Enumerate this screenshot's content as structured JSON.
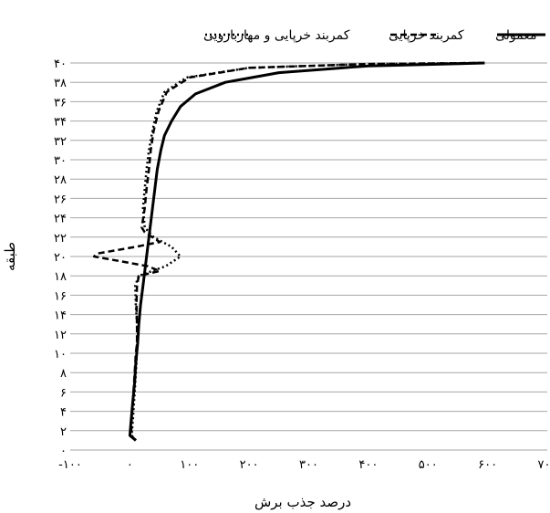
{
  "chart_data": {
    "type": "line",
    "orientation": "values-on-x, floors-on-y",
    "xlabel": "درصد جذب برش",
    "ylabel": "طبقه",
    "xlim": [
      -100,
      700
    ],
    "ylim": [
      0,
      40
    ],
    "x_ticks": [
      -100,
      0,
      100,
      200,
      300,
      400,
      500,
      600,
      700
    ],
    "x_tick_labels": [
      "-۱۰۰",
      "۰",
      "۱۰۰",
      "۲۰۰",
      "۳۰۰",
      "۴۰۰",
      "۵۰۰",
      "۶۰۰",
      "۷۰۰"
    ],
    "y_ticks": [
      0,
      2,
      4,
      6,
      8,
      10,
      12,
      14,
      16,
      18,
      20,
      22,
      24,
      26,
      28,
      30,
      32,
      34,
      36,
      38,
      40
    ],
    "y_tick_labels": [
      "۰",
      "۲",
      "۴",
      "۶",
      "۸",
      "۱۰",
      "۱۲",
      "۱۴",
      "۱۶",
      "۱۸",
      "۲۰",
      "۲۲",
      "۲۴",
      "۲۶",
      "۲۸",
      "۳۰",
      "۳۲",
      "۳۴",
      "۳۶",
      "۳۸",
      "۴۰"
    ],
    "grid": true,
    "legend_position": "top",
    "series": [
      {
        "name": "معمولی",
        "style": "solid",
        "color": "#000000",
        "points": [
          [
            10,
            1
          ],
          [
            0,
            1.5
          ],
          [
            2,
            3
          ],
          [
            5,
            5
          ],
          [
            8,
            7
          ],
          [
            10,
            9
          ],
          [
            13,
            11
          ],
          [
            15,
            13
          ],
          [
            18,
            15
          ],
          [
            22,
            17
          ],
          [
            26,
            19
          ],
          [
            30,
            21
          ],
          [
            34,
            23
          ],
          [
            38,
            25
          ],
          [
            42,
            27
          ],
          [
            46,
            29
          ],
          [
            52,
            31
          ],
          [
            58,
            32.5
          ],
          [
            70,
            34
          ],
          [
            85,
            35.5
          ],
          [
            110,
            36.8
          ],
          [
            160,
            38
          ],
          [
            250,
            39
          ],
          [
            400,
            39.7
          ],
          [
            595,
            40
          ]
        ]
      },
      {
        "name": "کمربند خرپایی",
        "style": "dashed",
        "color": "#000000",
        "points": [
          [
            10,
            1
          ],
          [
            2,
            1.5
          ],
          [
            3,
            3
          ],
          [
            5,
            5
          ],
          [
            7,
            7
          ],
          [
            9,
            9
          ],
          [
            10,
            10
          ],
          [
            12,
            11
          ],
          [
            12,
            13
          ],
          [
            11,
            15
          ],
          [
            12,
            17
          ],
          [
            15,
            18
          ],
          [
            50,
            18.5
          ],
          [
            30,
            19
          ],
          [
            -60,
            20
          ],
          [
            -55,
            20.3
          ],
          [
            10,
            21
          ],
          [
            50,
            21.5
          ],
          [
            25,
            22.5
          ],
          [
            20,
            23
          ],
          [
            25,
            25
          ],
          [
            28,
            27
          ],
          [
            32,
            29
          ],
          [
            35,
            31
          ],
          [
            40,
            33
          ],
          [
            48,
            35
          ],
          [
            62,
            37
          ],
          [
            100,
            38.5
          ],
          [
            200,
            39.5
          ],
          [
            400,
            39.9
          ],
          [
            590,
            40
          ]
        ]
      },
      {
        "name": "کمربند خرپایی و مهاربازویی",
        "style": "dotted",
        "color": "#000000",
        "points": [
          [
            10,
            1
          ],
          [
            3,
            1.5
          ],
          [
            5,
            3
          ],
          [
            7,
            5
          ],
          [
            9,
            7
          ],
          [
            11,
            9
          ],
          [
            12,
            11
          ],
          [
            12,
            13
          ],
          [
            10,
            15
          ],
          [
            9,
            17
          ],
          [
            15,
            18
          ],
          [
            60,
            19
          ],
          [
            85,
            20
          ],
          [
            70,
            21
          ],
          [
            40,
            22
          ],
          [
            25,
            23
          ],
          [
            22,
            25
          ],
          [
            25,
            27
          ],
          [
            28,
            29
          ],
          [
            32,
            31
          ],
          [
            38,
            33
          ],
          [
            45,
            35
          ],
          [
            58,
            37
          ],
          [
            95,
            38.5
          ],
          [
            200,
            39.5
          ],
          [
            400,
            39.9
          ],
          [
            590,
            40
          ]
        ]
      }
    ]
  }
}
